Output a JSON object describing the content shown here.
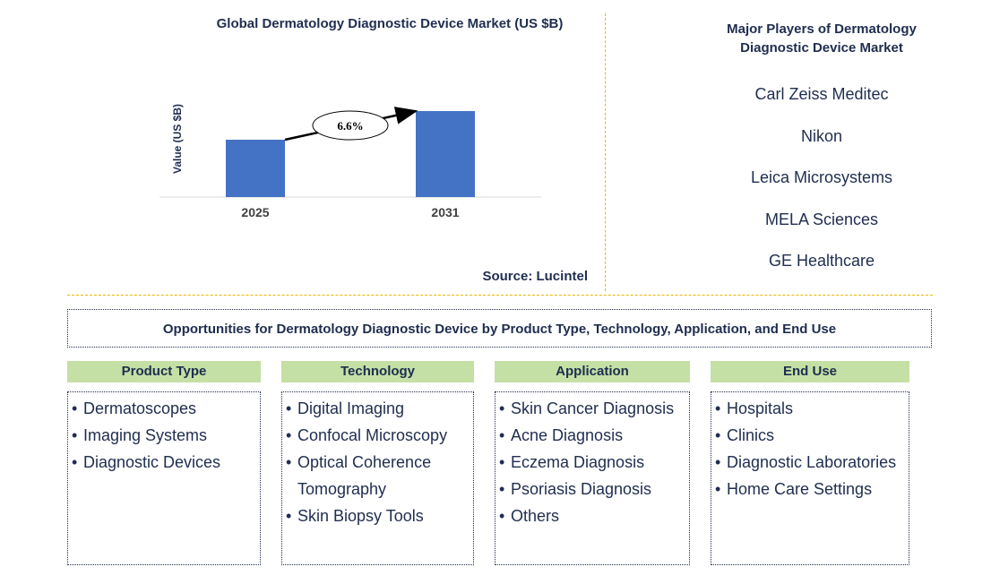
{
  "chart_data": {
    "type": "bar",
    "title": "Global Dermatology Diagnostic Device Market (US $B)",
    "ylabel": "Value (US $B)",
    "xlabel": "",
    "categories": [
      "2025",
      "2031"
    ],
    "values": [
      1.0,
      1.5
    ],
    "ylim": [
      0,
      1.5
    ],
    "annotation": "6.6%",
    "bar_color": "#4472c4",
    "grid": false,
    "legend": "none"
  },
  "source": "Source: Lucintel",
  "players": {
    "title": "Major Players of Dermatology Diagnostic Device Market",
    "items": [
      "Carl Zeiss Meditec",
      "Nikon",
      "Leica Microsystems",
      "MELA Sciences",
      "GE Healthcare"
    ]
  },
  "opportunities": {
    "title": "Opportunities for Dermatology Diagnostic Device by Product Type, Technology, Application, and End Use",
    "categories": [
      {
        "heading": "Product Type",
        "items": [
          "Dermatoscopes",
          "Imaging Systems",
          "Diagnostic Devices"
        ]
      },
      {
        "heading": "Technology",
        "items": [
          "Digital Imaging",
          "Confocal Microscopy",
          "Optical Coherence Tomography",
          "Skin Biopsy Tools"
        ]
      },
      {
        "heading": "Application",
        "items": [
          "Skin Cancer Diagnosis",
          "Acne Diagnosis",
          "Eczema Diagnosis",
          "Psoriasis Diagnosis",
          "Others"
        ]
      },
      {
        "heading": "End Use",
        "items": [
          "Hospitals",
          "Clinics",
          "Diagnostic Laboratories",
          "Home Care Settings"
        ]
      }
    ]
  }
}
